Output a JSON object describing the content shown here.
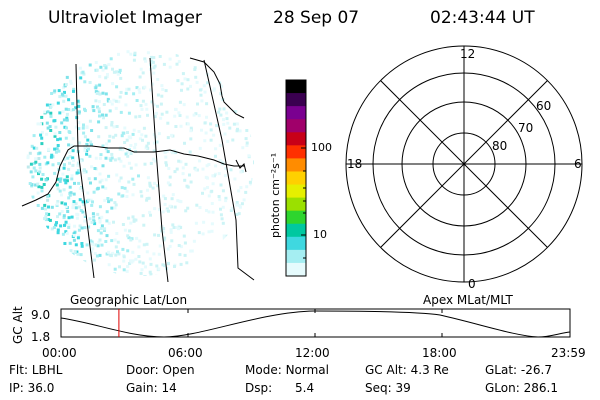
{
  "header": {
    "title": "Ultraviolet Imager",
    "date": "28 Sep 07",
    "time": "02:43:44 UT"
  },
  "colorbar": {
    "unit": "photon cm⁻²s⁻¹",
    "ticks": [
      "100",
      "10"
    ],
    "colors": [
      "#000000",
      "#3a0050",
      "#7a0090",
      "#a0006a",
      "#c80018",
      "#ff3000",
      "#ff8c00",
      "#ffd000",
      "#e6ef00",
      "#9be000",
      "#2ed52e",
      "#00c8a0",
      "#3fd8e0",
      "#a5eef2",
      "#e6fbfd"
    ]
  },
  "polar_plot": {
    "mlt_labels": {
      "top": "12",
      "right": "6",
      "bottom": "0",
      "left": "18"
    },
    "lat_labels": [
      "60",
      "70",
      "80"
    ]
  },
  "labels": {
    "left": "Geographic Lat/Lon",
    "right": "Apex MLat/MLT"
  },
  "altitude_plot": {
    "ylabel": "GC Alt",
    "y_top": "9.0",
    "y_bottom": "1.8",
    "x_ticks": [
      "00:00",
      "06:00",
      "12:00",
      "18:00",
      "23:59"
    ],
    "marker_time_ut": "02:43:44",
    "marker_color": "#e00000"
  },
  "status": {
    "row1": [
      {
        "label": "Flt:",
        "value": "LBHL"
      },
      {
        "label": "Door:",
        "value": "Open"
      },
      {
        "label": "Mode:",
        "value": "Normal"
      },
      {
        "label": "GC Alt:",
        "value": "4.3 Re"
      },
      {
        "label": "GLat:",
        "value": "-26.7"
      }
    ],
    "row2": [
      {
        "label": "IP:",
        "value": "36.0"
      },
      {
        "label": "Gain:",
        "value": "14"
      },
      {
        "label": "Dsp:",
        "value": "5.4"
      },
      {
        "label": "Seq:",
        "value": "39"
      },
      {
        "label": "GLon:",
        "value": "286.1"
      }
    ]
  }
}
